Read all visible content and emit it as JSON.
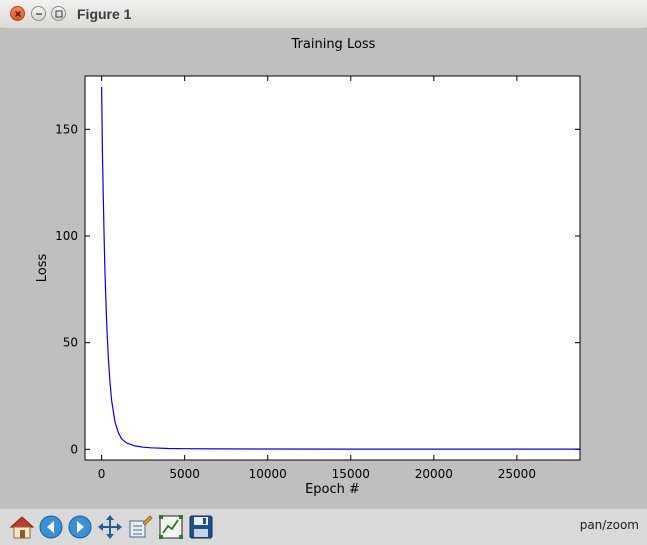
{
  "window": {
    "title": "Figure 1"
  },
  "toolbar": {
    "buttons": [
      "home-icon",
      "back-icon",
      "forward-icon",
      "pan-icon",
      "subplots-icon",
      "zoom-to-rect-icon",
      "save-icon"
    ],
    "status": "pan/zoom"
  },
  "chart_data": {
    "type": "line",
    "title": "Training Loss",
    "xlabel": "Epoch #",
    "ylabel": "Loss",
    "xlim": [
      -1000,
      28800
    ],
    "ylim": [
      -5,
      175
    ],
    "xticks": [
      0,
      5000,
      10000,
      15000,
      20000,
      25000
    ],
    "yticks": [
      0,
      50,
      100,
      150
    ],
    "grid": false,
    "series": [
      {
        "color": "#0000ff",
        "x": [
          0,
          50,
          100,
          150,
          200,
          300,
          400,
          500,
          600,
          800,
          1000,
          1200,
          1500,
          2000,
          2500,
          3000,
          4000,
          5000,
          7000,
          10000,
          15000,
          20000,
          25000,
          28800
        ],
        "y": [
          170,
          140,
          118,
          100,
          84,
          60,
          43,
          32,
          23,
          13,
          8,
          5,
          3,
          1.6,
          1.0,
          0.7,
          0.4,
          0.3,
          0.2,
          0.15,
          0.12,
          0.1,
          0.1,
          0.1
        ]
      }
    ]
  }
}
